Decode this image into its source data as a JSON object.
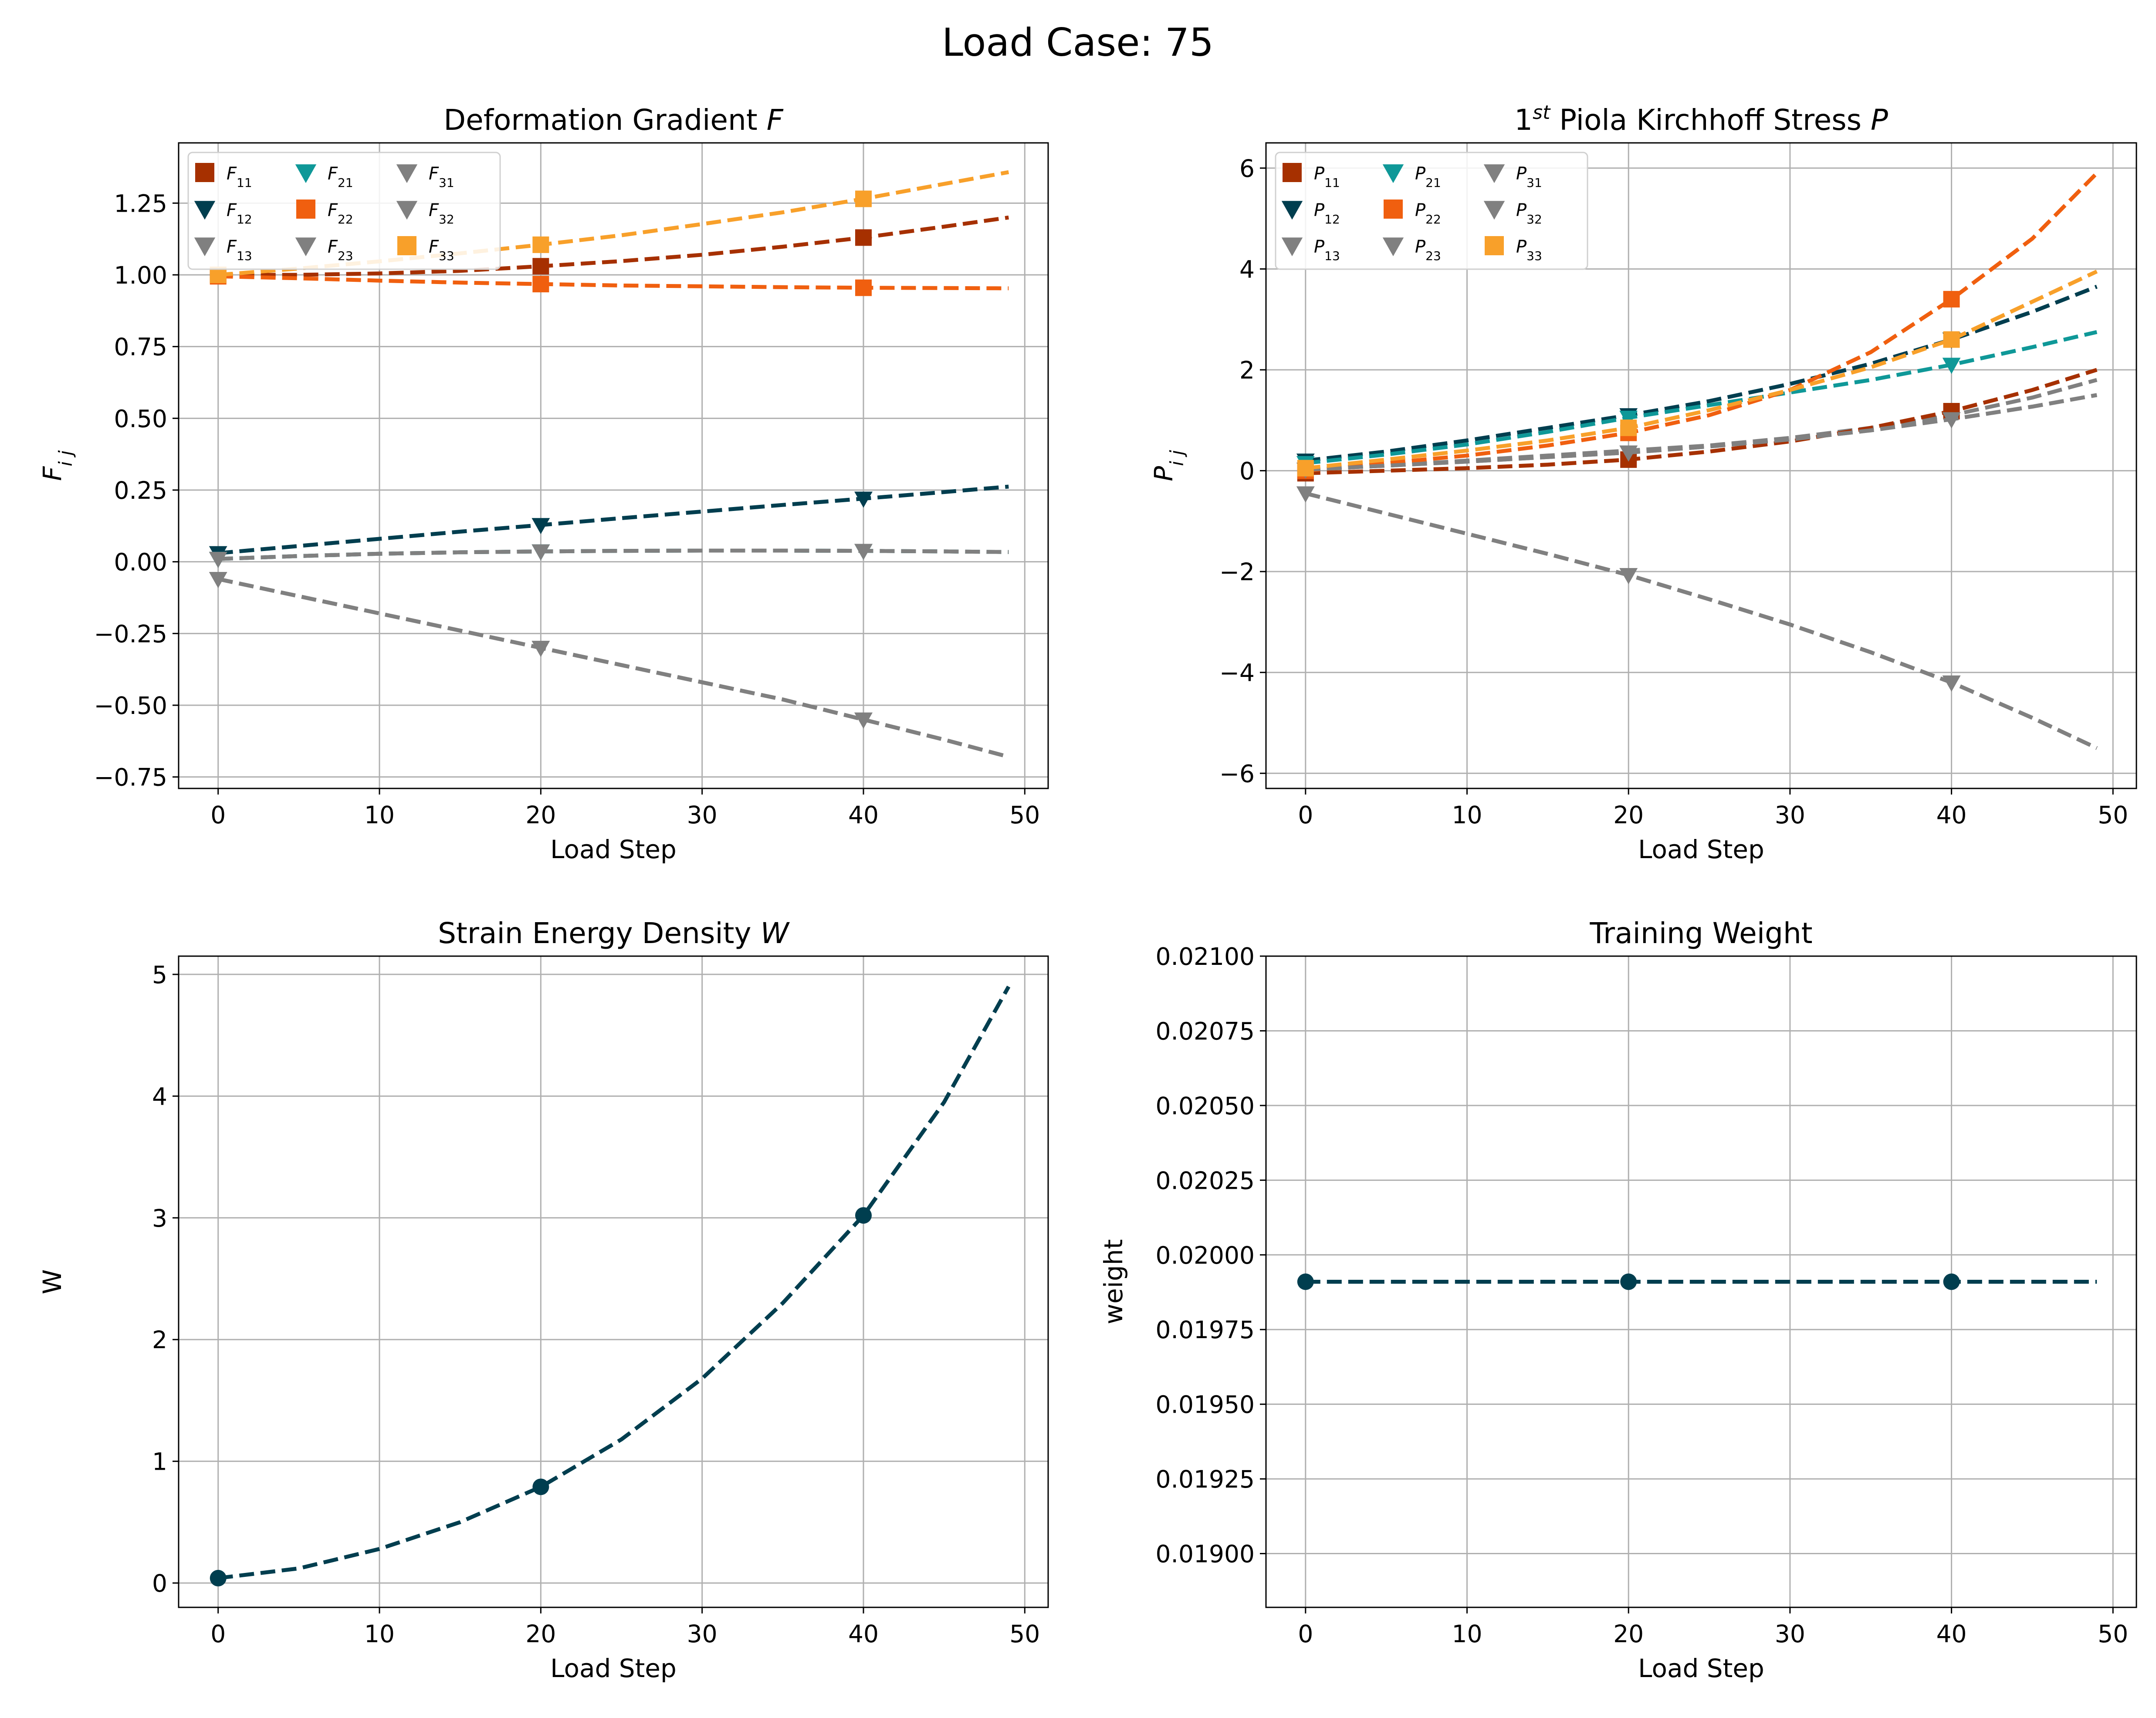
{
  "figure": {
    "suptitle": "Load Case: 75"
  },
  "chart_data": [
    {
      "id": "F",
      "type": "line",
      "title": "Deformation Gradient F",
      "title_parts": [
        {
          "t": "Deformation Gradient "
        },
        {
          "t": "F",
          "italic": true
        }
      ],
      "xlabel": "Load Step",
      "ylabel": "F",
      "ylabel_sub": "i j",
      "xlim": [
        -2.45,
        51.45
      ],
      "ylim": [
        -0.79,
        1.46
      ],
      "xticks": [
        0,
        10,
        20,
        30,
        40,
        50
      ],
      "xtick_labels": [
        "0",
        "10",
        "20",
        "30",
        "40",
        "50"
      ],
      "yticks": [
        -0.75,
        -0.5,
        -0.25,
        0,
        0.25,
        0.5,
        0.75,
        1.0,
        1.25
      ],
      "ytick_labels": [
        "−0.75",
        "−0.50",
        "−0.25",
        "0.00",
        "0.25",
        "0.50",
        "0.75",
        "1.00",
        "1.25"
      ],
      "grid": true,
      "legend": {
        "position": "upper-left",
        "columns": 3
      },
      "x": [
        0,
        5,
        10,
        15,
        20,
        25,
        30,
        35,
        40,
        45,
        49
      ],
      "marker_x": [
        0,
        20,
        40
      ],
      "series": [
        {
          "name": "F",
          "sub": "11",
          "color": "#a63000",
          "marker": "square",
          "values": [
            1.0,
            1.0,
            1.005,
            1.014,
            1.03,
            1.048,
            1.07,
            1.098,
            1.13,
            1.168,
            1.2
          ]
        },
        {
          "name": "F",
          "sub": "12",
          "color": "#003e4f",
          "marker": "triangle-down",
          "values": [
            0.03,
            0.055,
            0.08,
            0.105,
            0.128,
            0.152,
            0.175,
            0.198,
            0.22,
            0.243,
            0.262
          ]
        },
        {
          "name": "F",
          "sub": "13",
          "color": "#808080",
          "marker": "triangle-down",
          "values": [
            0.01,
            0.02,
            0.028,
            0.033,
            0.036,
            0.038,
            0.039,
            0.039,
            0.038,
            0.036,
            0.034
          ]
        },
        {
          "name": "F",
          "sub": "21",
          "color": "#0f9898",
          "marker": "triangle-down",
          "values": [
            0.01,
            0.02,
            0.028,
            0.033,
            0.036,
            0.038,
            0.039,
            0.039,
            0.038,
            0.036,
            0.034
          ]
        },
        {
          "name": "F",
          "sub": "22",
          "color": "#f05f0f",
          "marker": "square",
          "values": [
            0.995,
            0.988,
            0.98,
            0.973,
            0.968,
            0.963,
            0.96,
            0.957,
            0.955,
            0.954,
            0.953
          ]
        },
        {
          "name": "F",
          "sub": "23",
          "color": "#808080",
          "marker": "triangle-down",
          "values": [
            0.01,
            0.02,
            0.028,
            0.033,
            0.036,
            0.038,
            0.039,
            0.039,
            0.038,
            0.036,
            0.034
          ]
        },
        {
          "name": "F",
          "sub": "31",
          "color": "#808080",
          "marker": "triangle-down",
          "values": [
            -0.06,
            -0.12,
            -0.18,
            -0.24,
            -0.3,
            -0.36,
            -0.42,
            -0.48,
            -0.55,
            -0.62,
            -0.68
          ]
        },
        {
          "name": "F",
          "sub": "32",
          "color": "#808080",
          "marker": "triangle-down",
          "values": [
            -0.06,
            -0.12,
            -0.18,
            -0.24,
            -0.3,
            -0.36,
            -0.42,
            -0.48,
            -0.55,
            -0.62,
            -0.68
          ]
        },
        {
          "name": "F",
          "sub": "33",
          "color": "#f8a02a",
          "marker": "square",
          "values": [
            1.0,
            1.022,
            1.047,
            1.075,
            1.105,
            1.138,
            1.177,
            1.218,
            1.265,
            1.317,
            1.358
          ]
        }
      ]
    },
    {
      "id": "P",
      "type": "line",
      "title": "1st Piola Kirchhoff Stress P",
      "title_parts": [
        {
          "t": "1"
        },
        {
          "t": "st",
          "sup": true,
          "italic": true
        },
        {
          "t": " Piola Kirchhoff Stress "
        },
        {
          "t": "P",
          "italic": true
        }
      ],
      "xlabel": "Load Step",
      "ylabel": "P",
      "ylabel_sub": "i j",
      "xlim": [
        -2.45,
        51.45
      ],
      "ylim": [
        -6.3,
        6.5
      ],
      "xticks": [
        0,
        10,
        20,
        30,
        40,
        50
      ],
      "xtick_labels": [
        "0",
        "10",
        "20",
        "30",
        "40",
        "50"
      ],
      "yticks": [
        -6,
        -4,
        -2,
        0,
        2,
        4,
        6
      ],
      "ytick_labels": [
        "−6",
        "−4",
        "−2",
        "0",
        "2",
        "4",
        "6"
      ],
      "grid": true,
      "legend": {
        "position": "upper-left",
        "columns": 3
      },
      "x": [
        0,
        5,
        10,
        15,
        20,
        25,
        30,
        35,
        40,
        45,
        49
      ],
      "marker_x": [
        0,
        20,
        40
      ],
      "series": [
        {
          "name": "P",
          "sub": "11",
          "color": "#a63000",
          "marker": "square",
          "values": [
            -0.05,
            0.0,
            0.05,
            0.12,
            0.22,
            0.38,
            0.58,
            0.85,
            1.18,
            1.6,
            2.0
          ]
        },
        {
          "name": "P",
          "sub": "12",
          "color": "#003e4f",
          "marker": "triangle-down",
          "values": [
            0.2,
            0.38,
            0.6,
            0.85,
            1.1,
            1.38,
            1.72,
            2.12,
            2.6,
            3.15,
            3.65
          ]
        },
        {
          "name": "P",
          "sub": "13",
          "color": "#808080",
          "marker": "triangle-down",
          "values": [
            0.02,
            0.1,
            0.18,
            0.27,
            0.36,
            0.48,
            0.62,
            0.8,
            1.02,
            1.27,
            1.5
          ]
        },
        {
          "name": "P",
          "sub": "21",
          "color": "#0f9898",
          "marker": "triangle-down",
          "values": [
            0.15,
            0.32,
            0.52,
            0.77,
            1.05,
            1.3,
            1.55,
            1.8,
            2.1,
            2.45,
            2.75
          ]
        },
        {
          "name": "P",
          "sub": "22",
          "color": "#f05f0f",
          "marker": "square",
          "values": [
            0.0,
            0.15,
            0.3,
            0.5,
            0.75,
            1.1,
            1.6,
            2.35,
            3.4,
            4.6,
            5.9
          ]
        },
        {
          "name": "P",
          "sub": "23",
          "color": "#808080",
          "marker": "triangle-down",
          "values": [
            0.02,
            0.1,
            0.18,
            0.27,
            0.36,
            0.48,
            0.62,
            0.8,
            1.02,
            1.27,
            1.5
          ]
        },
        {
          "name": "P",
          "sub": "31",
          "color": "#808080",
          "marker": "triangle-down",
          "values": [
            -0.45,
            -0.85,
            -1.25,
            -1.65,
            -2.07,
            -2.55,
            -3.05,
            -3.6,
            -4.2,
            -4.9,
            -5.5
          ]
        },
        {
          "name": "P",
          "sub": "32",
          "color": "#808080",
          "marker": "triangle-down",
          "values": [
            -0.45,
            -0.85,
            -1.25,
            -1.65,
            -2.07,
            -2.55,
            -3.05,
            -3.6,
            -4.2,
            -4.9,
            -5.5
          ]
        },
        {
          "name": "P",
          "sub": "33",
          "color": "#f8a02a",
          "marker": "square",
          "values": [
            0.05,
            0.22,
            0.4,
            0.6,
            0.85,
            1.2,
            1.6,
            2.05,
            2.6,
            3.35,
            3.95
          ]
        }
      ],
      "extra_lines": [
        {
          "color": "#808080",
          "values": [
            0.02,
            0.1,
            0.2,
            0.3,
            0.4,
            0.5,
            0.65,
            0.85,
            1.1,
            1.45,
            1.8
          ]
        }
      ]
    },
    {
      "id": "W",
      "type": "line",
      "title": "Strain Energy Density W",
      "title_parts": [
        {
          "t": "Strain Energy Density "
        },
        {
          "t": "W",
          "italic": true
        }
      ],
      "xlabel": "Load Step",
      "ylabel": "W",
      "xlim": [
        -2.45,
        51.45
      ],
      "ylim": [
        -0.2,
        5.15
      ],
      "xticks": [
        0,
        10,
        20,
        30,
        40,
        50
      ],
      "xtick_labels": [
        "0",
        "10",
        "20",
        "30",
        "40",
        "50"
      ],
      "yticks": [
        0,
        1,
        2,
        3,
        4,
        5
      ],
      "ytick_labels": [
        "0",
        "1",
        "2",
        "3",
        "4",
        "5"
      ],
      "grid": true,
      "x": [
        0,
        5,
        10,
        15,
        20,
        25,
        30,
        35,
        40,
        45,
        49
      ],
      "marker_x": [
        0,
        20,
        40
      ],
      "series": [
        {
          "color": "#003e4f",
          "marker": "circle",
          "values": [
            0.04,
            0.12,
            0.28,
            0.5,
            0.79,
            1.18,
            1.68,
            2.3,
            3.02,
            3.95,
            4.9
          ]
        }
      ]
    },
    {
      "id": "weight",
      "type": "line",
      "title": "Training Weight",
      "title_parts": [
        {
          "t": "Training Weight"
        }
      ],
      "xlabel": "Load Step",
      "ylabel": "weight",
      "xlim": [
        -2.45,
        51.45
      ],
      "ylim": [
        0.01882,
        0.021
      ],
      "xticks": [
        0,
        10,
        20,
        30,
        40,
        50
      ],
      "xtick_labels": [
        "0",
        "10",
        "20",
        "30",
        "40",
        "50"
      ],
      "yticks": [
        0.019,
        0.01925,
        0.0195,
        0.01975,
        0.02,
        0.02025,
        0.0205,
        0.02075,
        0.021
      ],
      "ytick_labels": [
        "0.01900",
        "0.01925",
        "0.01950",
        "0.01975",
        "0.02000",
        "0.02025",
        "0.02050",
        "0.02075",
        "0.02100"
      ],
      "grid": true,
      "x": [
        0,
        49
      ],
      "marker_x": [
        0,
        20,
        40
      ],
      "series": [
        {
          "color": "#003e4f",
          "marker": "circle",
          "values": [
            0.01991,
            0.01991
          ]
        }
      ]
    }
  ]
}
